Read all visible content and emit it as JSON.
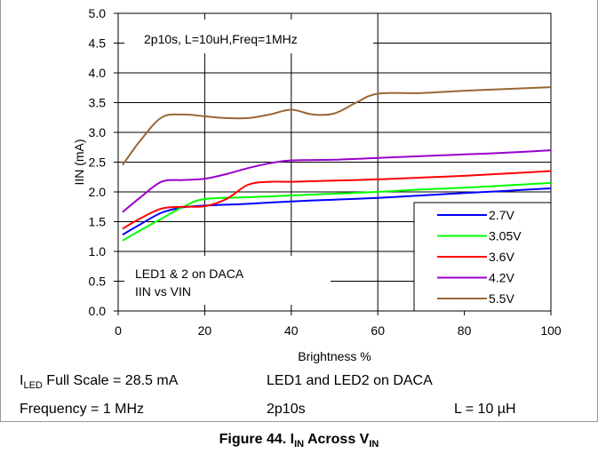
{
  "chart_data": {
    "type": "line",
    "title": "2p10s, L=10uH,Freq=1MHz",
    "xlabel": "Brightness %",
    "ylabel": "IIN (mA)",
    "xlim": [
      0,
      100
    ],
    "ylim": [
      0.0,
      5.0
    ],
    "x_ticks": [
      "0",
      "20",
      "40",
      "60",
      "80",
      "100"
    ],
    "y_ticks": [
      "0.0",
      "0.5",
      "1.0",
      "1.5",
      "2.0",
      "2.5",
      "3.0",
      "3.5",
      "4.0",
      "4.5",
      "5.0"
    ],
    "annotation_lines": [
      "LED1 & 2 on DACA",
      "IIN vs  VIN"
    ],
    "legend_position": "bottom-right",
    "grid": true,
    "series": [
      {
        "name": "2.7V",
        "color": "#0000ff",
        "x": [
          1,
          5,
          10,
          15,
          20,
          30,
          40,
          50,
          60,
          70,
          80,
          90,
          100
        ],
        "y": [
          1.28,
          1.45,
          1.65,
          1.74,
          1.77,
          1.8,
          1.84,
          1.87,
          1.9,
          1.94,
          1.98,
          2.02,
          2.06
        ]
      },
      {
        "name": "3.05V",
        "color": "#00ff00",
        "x": [
          1,
          5,
          10,
          15,
          20,
          30,
          40,
          50,
          60,
          70,
          80,
          90,
          100
        ],
        "y": [
          1.18,
          1.35,
          1.55,
          1.75,
          1.88,
          1.91,
          1.94,
          1.97,
          2.0,
          2.04,
          2.07,
          2.11,
          2.15
        ]
      },
      {
        "name": "3.6V",
        "color": "#ff0000",
        "x": [
          1,
          5,
          10,
          15,
          20,
          25,
          30,
          35,
          40,
          50,
          60,
          70,
          80,
          90,
          100
        ],
        "y": [
          1.38,
          1.55,
          1.72,
          1.75,
          1.76,
          1.88,
          2.12,
          2.17,
          2.17,
          2.19,
          2.21,
          2.24,
          2.27,
          2.31,
          2.35
        ]
      },
      {
        "name": "4.2V",
        "color": "#9900cc",
        "x": [
          1,
          5,
          10,
          15,
          20,
          25,
          30,
          35,
          40,
          50,
          60,
          70,
          80,
          90,
          100
        ],
        "y": [
          1.66,
          1.9,
          2.17,
          2.2,
          2.22,
          2.3,
          2.4,
          2.48,
          2.53,
          2.54,
          2.57,
          2.6,
          2.63,
          2.66,
          2.7
        ]
      },
      {
        "name": "5.5V",
        "color": "#996633",
        "x": [
          1,
          5,
          10,
          15,
          20,
          25,
          30,
          35,
          40,
          45,
          50,
          55,
          60,
          70,
          80,
          90,
          100
        ],
        "y": [
          2.45,
          2.85,
          3.25,
          3.3,
          3.27,
          3.24,
          3.24,
          3.3,
          3.38,
          3.3,
          3.32,
          3.5,
          3.65,
          3.66,
          3.7,
          3.73,
          3.76
        ]
      }
    ]
  },
  "info": {
    "iled_prefix": "I",
    "iled_sub": "LED",
    "iled_rest": " Full Scale = 28.5 mA",
    "frequency": "Frequency = 1 MHz",
    "led_daca": "LED1 and LED2 on DACA",
    "config": "2p10s",
    "inductance": "L = 10 µH"
  },
  "caption": {
    "prefix": "Figure 44. I",
    "sub1": "IN",
    "middle": " Across V",
    "sub2": "IN"
  }
}
